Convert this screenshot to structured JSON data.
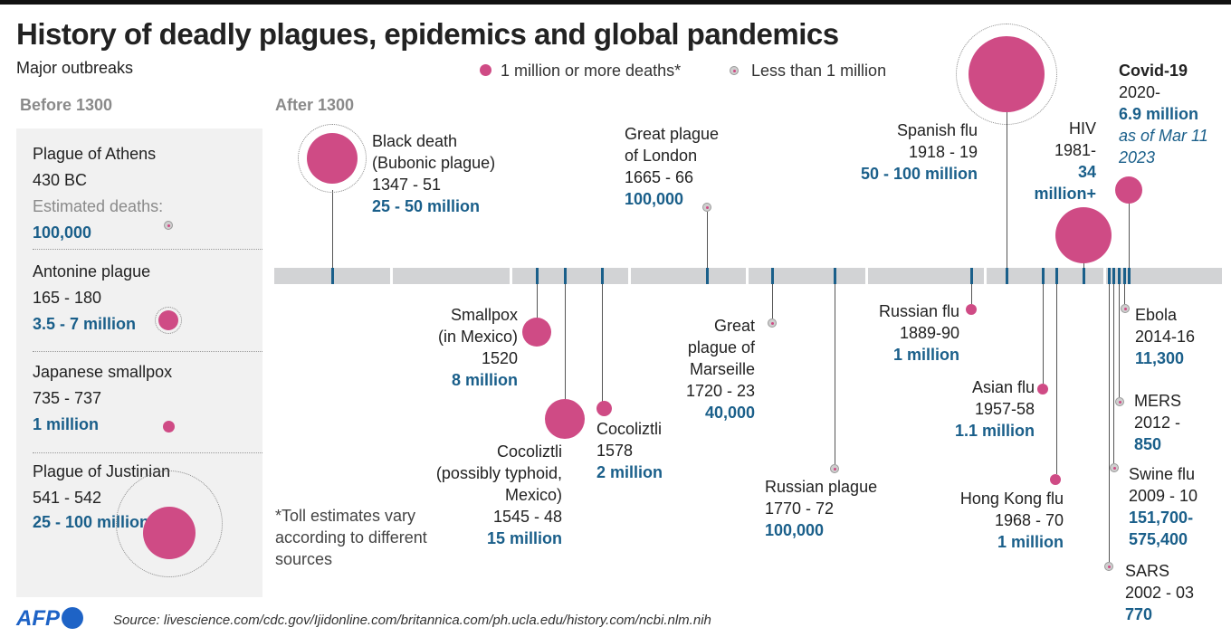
{
  "title": "History of deadly plagues, epidemics and global pandemics",
  "subtitle": "Major outbreaks",
  "legend": {
    "large": "1 million or more deaths*",
    "small": "Less than 1 million",
    "large_color": "#cf4b85",
    "small_color": "#cfcfcf"
  },
  "before_label": "Before 1300",
  "after_label": "After 1300",
  "before": [
    {
      "name": "Plague of Athens",
      "years": "430 BC",
      "note": "Estimated deaths:",
      "deaths": "100,000"
    },
    {
      "name": "Antonine plague",
      "years": "165 - 180",
      "deaths": "3.5 - 7 million"
    },
    {
      "name": "Japanese smallpox",
      "years": "735 - 737",
      "deaths": "1 million"
    },
    {
      "name": "Plague of Justinian",
      "years": "541 - 542",
      "deaths": "25 - 100 million"
    }
  ],
  "events": {
    "black_death": {
      "name": "Black death",
      "name2": "(Bubonic plague)",
      "years": "1347 - 51",
      "deaths": "25 - 50 million"
    },
    "smallpox_mexico": {
      "name": "Smallpox",
      "name2": "(in Mexico)",
      "years": "1520",
      "deaths": "8 million"
    },
    "cocoliztli_1545": {
      "name": "Cocoliztli",
      "name2": "(possibly typhoid,",
      "name3": "Mexico)",
      "years": "1545 - 48",
      "deaths": "15 million"
    },
    "cocoliztli_1578": {
      "name": "Cocoliztli",
      "years": "1578",
      "deaths": "2 million"
    },
    "great_plague_london": {
      "name": "Great plague",
      "name2": "of London",
      "years": "1665 - 66",
      "deaths": "100,000"
    },
    "great_plague_marseille": {
      "name": "Great",
      "name2": "plague of",
      "name3": "Marseille",
      "years": "1720 - 23",
      "deaths": "40,000"
    },
    "russian_plague": {
      "name": "Russian plague",
      "years": "1770 - 72",
      "deaths": "100,000"
    },
    "russian_flu": {
      "name": "Russian flu",
      "years": "1889-90",
      "deaths": "1 million"
    },
    "spanish_flu": {
      "name": "Spanish flu",
      "years": "1918 - 19",
      "deaths": "50 - 100 million"
    },
    "asian_flu": {
      "name": "Asian flu",
      "years": "1957-58",
      "deaths": "1.1 million"
    },
    "hong_kong_flu": {
      "name": "Hong Kong flu",
      "years": "1968 - 70",
      "deaths": "1 million"
    },
    "hiv": {
      "name": "HIV",
      "years": "1981-",
      "deaths": "34",
      "deaths2": "million+"
    },
    "covid": {
      "name": "Covid-19",
      "years": "2020-",
      "deaths": "6.9 million",
      "note": "as of Mar 11",
      "note2": "2023"
    },
    "ebola": {
      "name": "Ebola",
      "years": "2014-16",
      "deaths": "11,300"
    },
    "mers": {
      "name": "MERS",
      "years": "2012 -",
      "deaths": "850"
    },
    "swine_flu": {
      "name": "Swine flu",
      "years": "2009 - 10",
      "deaths": "151,700-",
      "deaths2": "575,400"
    },
    "sars": {
      "name": "SARS",
      "years": "2002 - 03",
      "deaths": "770"
    }
  },
  "footnote": [
    "*Toll estimates vary",
    "according to different",
    "sources"
  ],
  "logo": "AFP",
  "source": "Source: livescience.com/cdc.gov/Ijidonline.com/britannica.com/ph.ucla.edu/history.com/ncbi.nlm.nih"
}
